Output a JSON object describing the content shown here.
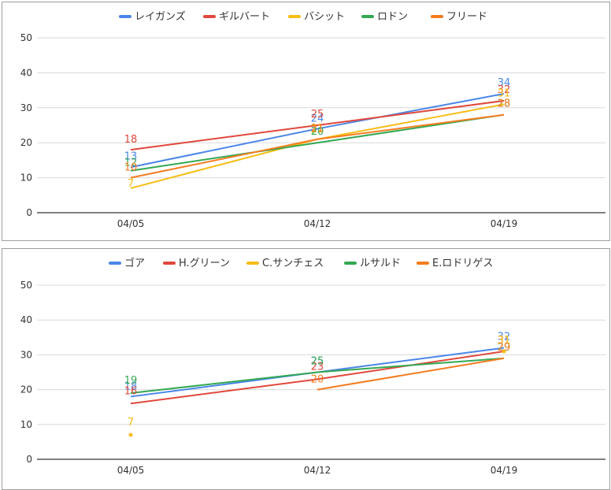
{
  "colors": {
    "blue": "#4a86e8",
    "red": "#e0483c",
    "yellow": "#f6bd16",
    "green": "#34a853",
    "orange": "#f57c1f"
  },
  "chart_data": [
    {
      "type": "line",
      "categories": [
        "04/05",
        "04/12",
        "04/19"
      ],
      "ylim": [
        0,
        50
      ],
      "yticks": [
        0,
        10,
        20,
        30,
        40,
        50
      ],
      "grid": true,
      "legend": "top",
      "series": [
        {
          "name": "レイガンズ",
          "color": "#4a86e8",
          "values": [
            13,
            24,
            34
          ]
        },
        {
          "name": "ギルバート",
          "color": "#e0483c",
          "values": [
            18,
            25,
            32
          ]
        },
        {
          "name": "バシット",
          "color": "#f6bd16",
          "values": [
            7,
            21,
            31
          ]
        },
        {
          "name": "ロドン",
          "color": "#34a853",
          "values": [
            12,
            20,
            28
          ]
        },
        {
          "name": "フリード",
          "color": "#f57c1f",
          "values": [
            10,
            21,
            28
          ]
        }
      ]
    },
    {
      "type": "line",
      "categories": [
        "04/05",
        "04/12",
        "04/19"
      ],
      "ylim": [
        0,
        50
      ],
      "yticks": [
        0,
        10,
        20,
        30,
        40,
        50
      ],
      "grid": true,
      "legend": "top",
      "series": [
        {
          "name": "ゴア",
          "color": "#4a86e8",
          "values": [
            18,
            25,
            32
          ]
        },
        {
          "name": "H.グリーン",
          "color": "#e0483c",
          "values": [
            16,
            23,
            31
          ]
        },
        {
          "name": "C.サンチェス",
          "color": "#f6bd16",
          "values": [
            7,
            null,
            31
          ]
        },
        {
          "name": "ルサルド",
          "color": "#34a853",
          "values": [
            19,
            25,
            29
          ]
        },
        {
          "name": "E.ロドリゲス",
          "color": "#f57c1f",
          "values": [
            null,
            20,
            29
          ]
        }
      ]
    }
  ]
}
